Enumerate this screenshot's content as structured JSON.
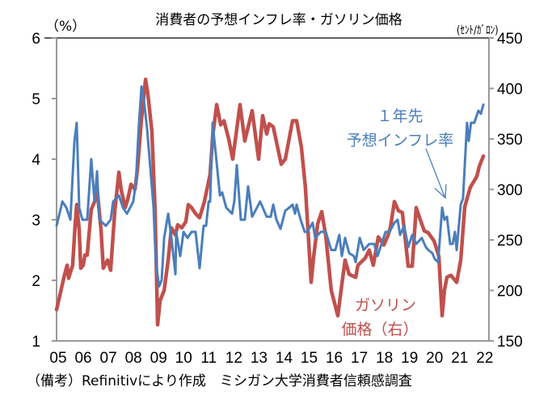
{
  "chart_data": {
    "type": "line",
    "title": "消費者の予想インフレ率・ガソリン価格",
    "y_left_unit": "（%）",
    "y_right_unit": "(ｾﾝﾄ/ｶﾞﾛﾝ)",
    "x_tick_labels": [
      "05",
      "06",
      "07",
      "08",
      "09",
      "10",
      "11",
      "12",
      "13",
      "14",
      "15",
      "16",
      "17",
      "18",
      "19",
      "20",
      "21",
      "22"
    ],
    "x_range_years": [
      2005,
      2022.2
    ],
    "y_left_ticks": [
      "1",
      "2",
      "3",
      "4",
      "5",
      "6"
    ],
    "y_left_range": [
      1,
      6
    ],
    "y_right_ticks": [
      "150",
      "200",
      "250",
      "300",
      "350",
      "400",
      "450"
    ],
    "y_right_range": [
      150,
      450
    ],
    "grid": false,
    "series": [
      {
        "name_lines": [
          "１年先",
          "予想インフレ率"
        ],
        "axis": "left",
        "color": "#4a7ebb",
        "points": [
          [
            2005.0,
            2.9
          ],
          [
            2005.23,
            3.3
          ],
          [
            2005.39,
            3.2
          ],
          [
            2005.55,
            3.0
          ],
          [
            2005.71,
            4.3
          ],
          [
            2005.8,
            4.6
          ],
          [
            2005.9,
            3.2
          ],
          [
            2006.03,
            3.0
          ],
          [
            2006.22,
            3.0
          ],
          [
            2006.38,
            4.0
          ],
          [
            2006.51,
            3.3
          ],
          [
            2006.61,
            3.8
          ],
          [
            2006.7,
            3.0
          ],
          [
            2006.96,
            2.9
          ],
          [
            2007.15,
            3.0
          ],
          [
            2007.25,
            3.3
          ],
          [
            2007.48,
            3.4
          ],
          [
            2007.64,
            3.2
          ],
          [
            2007.8,
            3.1
          ],
          [
            2008.05,
            3.3
          ],
          [
            2008.15,
            3.6
          ],
          [
            2008.28,
            4.6
          ],
          [
            2008.38,
            5.2
          ],
          [
            2008.47,
            5.0
          ],
          [
            2008.6,
            4.5
          ],
          [
            2008.7,
            4.0
          ],
          [
            2008.86,
            3.2
          ],
          [
            2008.95,
            2.3
          ],
          [
            2009.08,
            1.9
          ],
          [
            2009.18,
            2.0
          ],
          [
            2009.28,
            2.7
          ],
          [
            2009.44,
            3.1
          ],
          [
            2009.57,
            2.7
          ],
          [
            2009.73,
            2.1
          ],
          [
            2009.76,
            2.8
          ],
          [
            2009.92,
            2.4
          ],
          [
            2010.05,
            2.8
          ],
          [
            2010.21,
            2.7
          ],
          [
            2010.37,
            2.8
          ],
          [
            2010.53,
            2.8
          ],
          [
            2010.69,
            2.2
          ],
          [
            2010.85,
            2.9
          ],
          [
            2010.95,
            2.9
          ],
          [
            2011.05,
            3.3
          ],
          [
            2011.11,
            3.3
          ],
          [
            2011.21,
            4.6
          ],
          [
            2011.33,
            4.1
          ],
          [
            2011.5,
            3.4
          ],
          [
            2011.59,
            3.45
          ],
          [
            2011.75,
            3.2
          ],
          [
            2011.98,
            3.1
          ],
          [
            2012.07,
            3.3
          ],
          [
            2012.17,
            3.9
          ],
          [
            2012.33,
            3.0
          ],
          [
            2012.49,
            3.0
          ],
          [
            2012.62,
            3.55
          ],
          [
            2012.78,
            3.05
          ],
          [
            2013.1,
            3.3
          ],
          [
            2013.36,
            3.05
          ],
          [
            2013.52,
            3.05
          ],
          [
            2013.62,
            3.25
          ],
          [
            2013.75,
            3.0
          ],
          [
            2013.91,
            2.85
          ],
          [
            2014.1,
            3.15
          ],
          [
            2014.26,
            3.2
          ],
          [
            2014.39,
            3.25
          ],
          [
            2014.49,
            3.1
          ],
          [
            2014.55,
            3.25
          ],
          [
            2014.71,
            3.0
          ],
          [
            2014.87,
            2.8
          ],
          [
            2014.97,
            2.8
          ],
          [
            2015.19,
            2.95
          ],
          [
            2015.29,
            2.7
          ],
          [
            2015.51,
            2.8
          ],
          [
            2015.71,
            2.8
          ],
          [
            2015.93,
            2.5
          ],
          [
            2016.09,
            2.5
          ],
          [
            2016.25,
            2.75
          ],
          [
            2016.35,
            2.4
          ],
          [
            2016.48,
            2.7
          ],
          [
            2016.64,
            2.45
          ],
          [
            2016.83,
            2.4
          ],
          [
            2016.9,
            2.3
          ],
          [
            2017.06,
            2.7
          ],
          [
            2017.22,
            2.5
          ],
          [
            2017.44,
            2.6
          ],
          [
            2017.64,
            2.6
          ],
          [
            2017.77,
            2.4
          ],
          [
            2017.93,
            2.6
          ],
          [
            2018.09,
            2.8
          ],
          [
            2018.25,
            2.8
          ],
          [
            2018.44,
            2.95
          ],
          [
            2018.57,
            3.0
          ],
          [
            2018.67,
            2.75
          ],
          [
            2018.83,
            2.9
          ],
          [
            2018.99,
            2.55
          ],
          [
            2019.15,
            2.75
          ],
          [
            2019.31,
            2.6
          ],
          [
            2019.53,
            2.7
          ],
          [
            2019.69,
            2.55
          ],
          [
            2019.79,
            2.5
          ],
          [
            2019.95,
            2.45
          ],
          [
            2020.05,
            2.35
          ],
          [
            2020.18,
            2.3
          ],
          [
            2020.34,
            3.2
          ],
          [
            2020.43,
            3.0
          ],
          [
            2020.53,
            3.05
          ],
          [
            2020.66,
            2.6
          ],
          [
            2020.76,
            2.6
          ],
          [
            2020.85,
            2.8
          ],
          [
            2020.92,
            2.5
          ],
          [
            2021.08,
            3.25
          ],
          [
            2021.17,
            3.35
          ],
          [
            2021.33,
            4.6
          ],
          [
            2021.4,
            4.3
          ],
          [
            2021.49,
            4.6
          ],
          [
            2021.62,
            4.6
          ],
          [
            2021.78,
            4.8
          ],
          [
            2021.88,
            4.75
          ],
          [
            2021.98,
            4.9
          ]
        ]
      },
      {
        "name_lines": [
          "ガソリン",
          "価格（右）"
        ],
        "axis": "right",
        "color": "#c0504d",
        "points": [
          [
            2005.0,
            181
          ],
          [
            2005.32,
            216
          ],
          [
            2005.42,
            225
          ],
          [
            2005.48,
            212
          ],
          [
            2005.64,
            225
          ],
          [
            2005.74,
            265
          ],
          [
            2005.8,
            285
          ],
          [
            2005.9,
            260
          ],
          [
            2005.96,
            222
          ],
          [
            2006.06,
            225
          ],
          [
            2006.13,
            235
          ],
          [
            2006.22,
            235
          ],
          [
            2006.38,
            280
          ],
          [
            2006.51,
            288
          ],
          [
            2006.61,
            301
          ],
          [
            2006.77,
            260
          ],
          [
            2006.86,
            222
          ],
          [
            2007.03,
            230
          ],
          [
            2007.15,
            220
          ],
          [
            2007.32,
            280
          ],
          [
            2007.48,
            317
          ],
          [
            2007.57,
            300
          ],
          [
            2007.73,
            282
          ],
          [
            2007.83,
            290
          ],
          [
            2007.96,
            305
          ],
          [
            2008.12,
            300
          ],
          [
            2008.22,
            320
          ],
          [
            2008.38,
            370
          ],
          [
            2008.54,
            409
          ],
          [
            2008.63,
            395
          ],
          [
            2008.79,
            358
          ],
          [
            2008.92,
            280
          ],
          [
            2009.02,
            166
          ],
          [
            2009.12,
            190
          ],
          [
            2009.28,
            200
          ],
          [
            2009.44,
            230
          ],
          [
            2009.57,
            262
          ],
          [
            2009.73,
            255
          ],
          [
            2009.82,
            265
          ],
          [
            2009.98,
            262
          ],
          [
            2010.14,
            268
          ],
          [
            2010.24,
            285
          ],
          [
            2010.37,
            282
          ],
          [
            2010.53,
            276
          ],
          [
            2010.69,
            272
          ],
          [
            2010.88,
            288
          ],
          [
            2011.11,
            315
          ],
          [
            2011.21,
            352
          ],
          [
            2011.37,
            384
          ],
          [
            2011.53,
            364
          ],
          [
            2011.66,
            368
          ],
          [
            2011.85,
            350
          ],
          [
            2012.01,
            330
          ],
          [
            2012.3,
            384
          ],
          [
            2012.49,
            348
          ],
          [
            2012.78,
            378
          ],
          [
            2013.04,
            330
          ],
          [
            2013.2,
            373
          ],
          [
            2013.36,
            355
          ],
          [
            2013.46,
            365
          ],
          [
            2013.62,
            362
          ],
          [
            2013.94,
            325
          ],
          [
            2014.1,
            330
          ],
          [
            2014.39,
            368
          ],
          [
            2014.55,
            368
          ],
          [
            2014.74,
            342
          ],
          [
            2014.9,
            302
          ],
          [
            2015.13,
            208
          ],
          [
            2015.23,
            234
          ],
          [
            2015.39,
            266
          ],
          [
            2015.55,
            278
          ],
          [
            2015.71,
            254
          ],
          [
            2015.93,
            200
          ],
          [
            2016.19,
            175
          ],
          [
            2016.35,
            206
          ],
          [
            2016.48,
            230
          ],
          [
            2016.64,
            216
          ],
          [
            2016.9,
            213
          ],
          [
            2016.99,
            225
          ],
          [
            2017.28,
            232
          ],
          [
            2017.44,
            240
          ],
          [
            2017.6,
            225
          ],
          [
            2017.8,
            253
          ],
          [
            2018.02,
            245
          ],
          [
            2018.18,
            254
          ],
          [
            2018.28,
            262
          ],
          [
            2018.44,
            288
          ],
          [
            2018.6,
            279
          ],
          [
            2018.76,
            277
          ],
          [
            2018.99,
            224
          ],
          [
            2019.15,
            224
          ],
          [
            2019.31,
            282
          ],
          [
            2019.47,
            270
          ],
          [
            2019.63,
            259
          ],
          [
            2019.79,
            257
          ],
          [
            2020.02,
            249
          ],
          [
            2020.21,
            234
          ],
          [
            2020.34,
            175
          ],
          [
            2020.43,
            200
          ],
          [
            2020.53,
            213
          ],
          [
            2020.69,
            215
          ],
          [
            2020.92,
            208
          ],
          [
            2021.08,
            230
          ],
          [
            2021.24,
            283
          ],
          [
            2021.46,
            302
          ],
          [
            2021.72,
            313
          ],
          [
            2021.82,
            323
          ],
          [
            2021.98,
            333
          ]
        ]
      }
    ]
  },
  "footnote": "（備考）Refinitivにより作成　ミシガン大学消費者信頼感調査"
}
